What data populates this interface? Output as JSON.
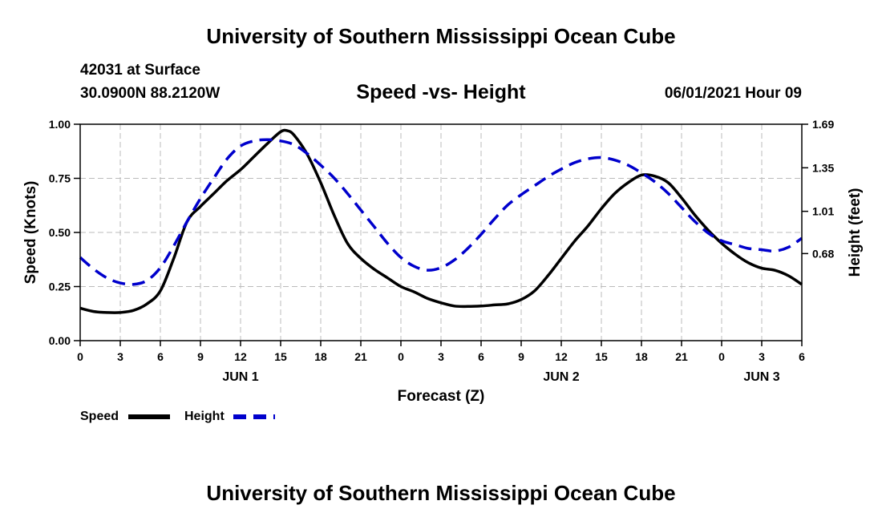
{
  "header": {
    "title": "University of Southern Mississippi Ocean Cube",
    "station": "42031 at Surface",
    "coordinates": "30.0900N  88.2120W",
    "date_hour": "06/01/2021 Hour 09"
  },
  "footer": {
    "title": "University of Southern Mississippi Ocean Cube"
  },
  "chart_data": {
    "type": "line",
    "title": "Speed -vs- Height",
    "xlabel": "Forecast (Z)",
    "ylabel_left": "Speed (Knots)",
    "ylabel_right": "Height (feet)",
    "x_range_hours": [
      0,
      54
    ],
    "x_tick_hours": [
      0,
      3,
      6,
      9,
      12,
      15,
      18,
      21,
      24,
      27,
      30,
      33,
      36,
      39,
      42,
      45,
      48,
      51,
      54
    ],
    "x_tick_labels": [
      "0",
      "3",
      "6",
      "9",
      "12",
      "15",
      "18",
      "21",
      "0",
      "3",
      "6",
      "9",
      "12",
      "15",
      "18",
      "21",
      "0",
      "3",
      "6"
    ],
    "day_labels": [
      {
        "label": "JUN 1",
        "hour": 12
      },
      {
        "label": "JUN 2",
        "hour": 36
      },
      {
        "label": "JUN 3",
        "hour": 51
      }
    ],
    "y_left": {
      "range": [
        0,
        1
      ],
      "ticks": [
        0,
        0.25,
        0.5,
        0.75,
        1.0
      ],
      "tick_labels": [
        "0.00",
        "0.25",
        "0.50",
        "0.75",
        "1.00"
      ]
    },
    "y_right": {
      "range": [
        0,
        1.69
      ],
      "ticks": [
        0.68,
        1.01,
        1.35,
        1.69
      ],
      "tick_labels": [
        "0.68",
        "1.01",
        "1.35",
        "1.69"
      ]
    },
    "grid": true,
    "legend": {
      "position": "bottom-left",
      "items": [
        "Speed",
        "Height"
      ]
    },
    "series": [
      {
        "name": "Speed",
        "axis": "left",
        "color": "#000000",
        "style": "solid",
        "x": [
          0,
          1,
          2,
          3,
          4,
          5,
          6,
          7,
          8,
          9,
          10,
          11,
          12,
          13,
          14,
          15,
          15.5,
          16,
          17,
          18,
          19,
          20,
          21,
          22,
          23,
          24,
          25,
          26,
          27,
          28,
          29,
          30,
          31,
          32,
          33,
          34,
          35,
          36,
          37,
          38,
          39,
          40,
          41,
          42,
          43,
          44,
          45,
          46,
          47,
          48,
          49,
          50,
          51,
          52,
          53,
          54
        ],
        "y": [
          0.15,
          0.135,
          0.13,
          0.13,
          0.14,
          0.17,
          0.23,
          0.38,
          0.55,
          0.62,
          0.68,
          0.74,
          0.79,
          0.85,
          0.91,
          0.965,
          0.97,
          0.95,
          0.86,
          0.73,
          0.58,
          0.45,
          0.38,
          0.33,
          0.29,
          0.25,
          0.225,
          0.195,
          0.175,
          0.16,
          0.158,
          0.16,
          0.165,
          0.17,
          0.19,
          0.23,
          0.3,
          0.38,
          0.46,
          0.53,
          0.61,
          0.68,
          0.73,
          0.765,
          0.76,
          0.73,
          0.66,
          0.58,
          0.51,
          0.45,
          0.4,
          0.36,
          0.335,
          0.325,
          0.3,
          0.26
        ]
      },
      {
        "name": "Height",
        "axis": "right",
        "color": "#0000cc",
        "style": "dashed",
        "x": [
          0,
          1,
          2,
          3,
          4,
          5,
          6,
          7,
          8,
          9,
          10,
          11,
          12,
          13,
          14,
          15,
          16,
          17,
          18,
          19,
          20,
          21,
          22,
          23,
          24,
          25,
          26,
          27,
          28,
          29,
          30,
          31,
          32,
          33,
          34,
          35,
          36,
          37,
          38,
          39,
          40,
          41,
          42,
          43,
          44,
          45,
          46,
          47,
          48,
          49,
          50,
          51,
          52,
          53,
          54
        ],
        "y": [
          0.65,
          0.56,
          0.49,
          0.45,
          0.44,
          0.47,
          0.57,
          0.74,
          0.93,
          1.11,
          1.27,
          1.42,
          1.52,
          1.56,
          1.57,
          1.56,
          1.53,
          1.46,
          1.37,
          1.27,
          1.15,
          1.02,
          0.89,
          0.76,
          0.65,
          0.58,
          0.55,
          0.57,
          0.63,
          0.72,
          0.83,
          0.95,
          1.06,
          1.14,
          1.21,
          1.28,
          1.34,
          1.39,
          1.42,
          1.43,
          1.41,
          1.37,
          1.31,
          1.24,
          1.15,
          1.04,
          0.93,
          0.84,
          0.78,
          0.75,
          0.72,
          0.71,
          0.7,
          0.73,
          0.8
        ]
      }
    ]
  }
}
